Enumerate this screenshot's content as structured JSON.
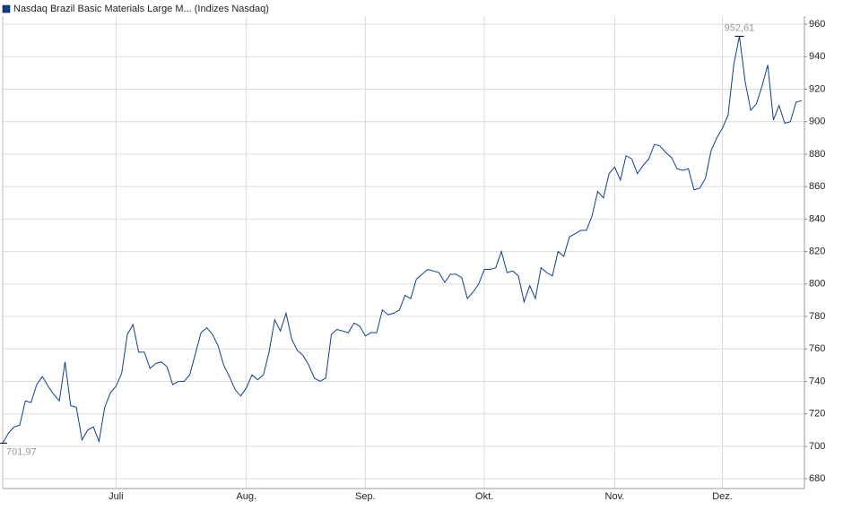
{
  "chart_data": {
    "type": "line",
    "series": [
      {
        "name": "Nasdaq Brazil Basic Materials Large M... (Indizes Nasdaq)",
        "color": "#0d3f8f",
        "values": [
          701.97,
          708,
          712,
          713,
          728,
          727,
          738,
          743,
          737,
          732,
          728,
          752,
          725,
          724,
          704,
          710,
          712,
          703,
          724,
          733,
          737,
          745,
          769,
          775,
          758,
          758,
          748,
          751,
          752,
          749,
          738,
          740,
          740,
          744,
          757,
          770,
          773,
          769,
          762,
          750,
          743,
          735,
          731,
          736,
          744,
          741,
          744,
          758,
          778,
          771,
          782,
          766,
          759,
          756,
          750,
          742,
          740,
          742,
          769,
          772,
          771,
          770,
          776,
          774,
          768,
          770,
          770,
          784,
          781,
          782,
          784,
          793,
          791,
          803,
          806,
          809,
          808,
          807,
          801,
          806,
          806,
          804,
          791,
          795,
          800,
          809,
          809,
          810,
          820,
          807,
          808,
          805,
          789,
          799,
          791,
          810,
          807,
          805,
          820,
          817,
          829,
          831,
          833,
          833,
          842,
          857,
          853,
          868,
          872,
          864,
          879,
          877,
          868,
          873,
          877,
          886,
          885,
          881,
          878,
          871,
          870,
          871,
          858,
          859,
          865,
          882,
          890,
          896,
          904,
          935,
          952.61,
          925,
          907,
          911,
          922,
          935,
          901,
          910,
          899,
          900,
          912,
          913
        ]
      }
    ],
    "categories": [
      null,
      null,
      null,
      null,
      null,
      null,
      null,
      null,
      null,
      null,
      null,
      null,
      null,
      null,
      null,
      null,
      null,
      null,
      null,
      null,
      "Juli",
      null,
      null,
      null,
      null,
      null,
      null,
      null,
      null,
      null,
      null,
      null,
      null,
      null,
      null,
      null,
      null,
      null,
      null,
      null,
      null,
      null,
      null,
      "Aug.",
      null,
      null,
      null,
      null,
      null,
      null,
      null,
      null,
      null,
      null,
      null,
      null,
      null,
      null,
      null,
      null,
      null,
      null,
      null,
      null,
      "Sep.",
      null,
      null,
      null,
      null,
      null,
      null,
      null,
      null,
      null,
      null,
      null,
      null,
      null,
      null,
      null,
      null,
      null,
      null,
      null,
      null,
      "Okt.",
      null,
      null,
      null,
      null,
      null,
      null,
      null,
      null,
      null,
      null,
      null,
      null,
      null,
      null,
      null,
      null,
      null,
      null,
      null,
      null,
      null,
      null,
      "Nov.",
      null,
      null,
      null,
      null,
      null,
      null,
      null,
      null,
      null,
      null,
      null,
      null,
      null,
      null,
      null,
      null,
      null,
      null,
      "Dez.",
      null,
      null,
      null,
      null,
      null,
      null,
      null,
      null,
      null,
      null,
      null,
      null,
      null,
      null
    ],
    "annotations": [
      {
        "text": "952,61",
        "value": 952.61
      },
      {
        "text": "701,97",
        "value": 701.97
      }
    ],
    "ylim": [
      674,
      965
    ],
    "yticks": [
      680,
      700,
      720,
      740,
      760,
      780,
      800,
      820,
      840,
      860,
      880,
      900,
      920,
      940,
      960
    ],
    "grid": true
  }
}
